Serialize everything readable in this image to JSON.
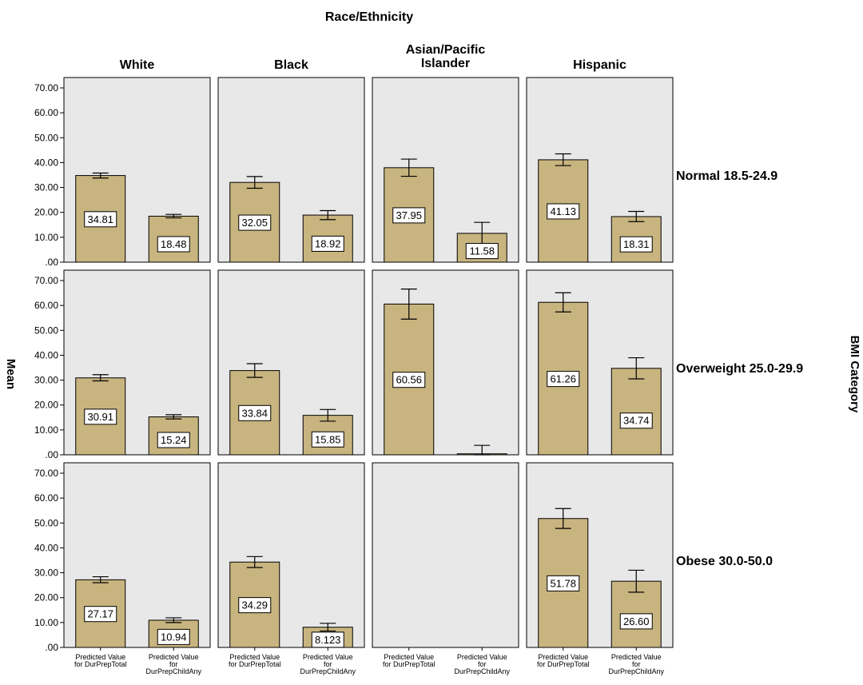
{
  "chart_data": {
    "type": "bar",
    "title": "Race/Ethnicity",
    "ylabel": "Mean",
    "row_axis_title": "BMI Category",
    "ylim": [
      0,
      70
    ],
    "yticks": [
      ".00",
      "10.00",
      "20.00",
      "30.00",
      "40.00",
      "50.00",
      "60.00",
      "70.00"
    ],
    "columns": [
      "White",
      "Black",
      "Asian/Pacific Islander",
      "Hispanic"
    ],
    "column_display": [
      [
        "White"
      ],
      [
        "Black"
      ],
      [
        "Asian/Pacific",
        "Islander"
      ],
      [
        "Hispanic"
      ]
    ],
    "rows": [
      "Normal 18.5-24.9",
      "Overweight 25.0-29.9",
      "Obese 30.0-50.0"
    ],
    "categories": [
      "Predicted Value for DurPrepTotal",
      "Predicted Value for DurPrepChildAny"
    ],
    "category_display": [
      [
        "Predicted Value",
        "for DurPrepTotal"
      ],
      [
        "Predicted Value",
        "for",
        "DurPrepChildAny"
      ]
    ],
    "grid": false,
    "bar_color": "#c8b47f",
    "panel_color": "#e8e8e8",
    "panels": [
      [
        {
          "bars": [
            {
              "value": 34.81,
              "label": "34.81",
              "err": [
                33.8,
                35.8
              ]
            },
            {
              "value": 18.48,
              "label": "18.48",
              "err": [
                17.8,
                19.2
              ]
            }
          ]
        },
        {
          "bars": [
            {
              "value": 32.05,
              "label": "32.05",
              "err": [
                29.7,
                34.4
              ]
            },
            {
              "value": 18.92,
              "label": "18.92",
              "err": [
                17.1,
                20.7
              ]
            }
          ]
        },
        {
          "bars": [
            {
              "value": 37.95,
              "label": "37.95",
              "err": [
                34.5,
                41.4
              ]
            },
            {
              "value": 11.58,
              "label": "11.58",
              "err": [
                7.2,
                16.0
              ]
            }
          ]
        },
        {
          "bars": [
            {
              "value": 41.13,
              "label": "41.13",
              "err": [
                38.8,
                43.5
              ]
            },
            {
              "value": 18.31,
              "label": "18.31",
              "err": [
                16.3,
                20.4
              ]
            }
          ]
        }
      ],
      [
        {
          "bars": [
            {
              "value": 30.91,
              "label": "30.91",
              "err": [
                29.7,
                32.2
              ]
            },
            {
              "value": 15.24,
              "label": "15.24",
              "err": [
                14.4,
                16.1
              ]
            }
          ]
        },
        {
          "bars": [
            {
              "value": 33.84,
              "label": "33.84",
              "err": [
                31.1,
                36.6
              ]
            },
            {
              "value": 15.85,
              "label": "15.85",
              "err": [
                13.5,
                18.2
              ]
            }
          ]
        },
        {
          "bars": [
            {
              "value": 60.56,
              "label": "60.56",
              "err": [
                54.5,
                66.6
              ]
            },
            {
              "value": 0.4,
              "label": "",
              "err": [
                0,
                3.8
              ]
            }
          ]
        },
        {
          "bars": [
            {
              "value": 61.26,
              "label": "61.26",
              "err": [
                57.4,
                65.1
              ]
            },
            {
              "value": 34.74,
              "label": "34.74",
              "err": [
                30.5,
                39.0
              ]
            }
          ]
        }
      ],
      [
        {
          "bars": [
            {
              "value": 27.17,
              "label": "27.17",
              "err": [
                26.0,
                28.4
              ]
            },
            {
              "value": 10.94,
              "label": "10.94",
              "err": [
                10.0,
                11.9
              ]
            }
          ]
        },
        {
          "bars": [
            {
              "value": 34.29,
              "label": "34.29",
              "err": [
                32.1,
                36.5
              ]
            },
            {
              "value": 8.123,
              "label": "8.123",
              "err": [
                6.6,
                9.7
              ]
            }
          ]
        },
        {
          "bars": []
        },
        {
          "bars": [
            {
              "value": 51.78,
              "label": "51.78",
              "err": [
                47.8,
                55.8
              ]
            },
            {
              "value": 26.6,
              "label": "26.60",
              "err": [
                22.2,
                31.0
              ]
            }
          ]
        }
      ]
    ]
  }
}
